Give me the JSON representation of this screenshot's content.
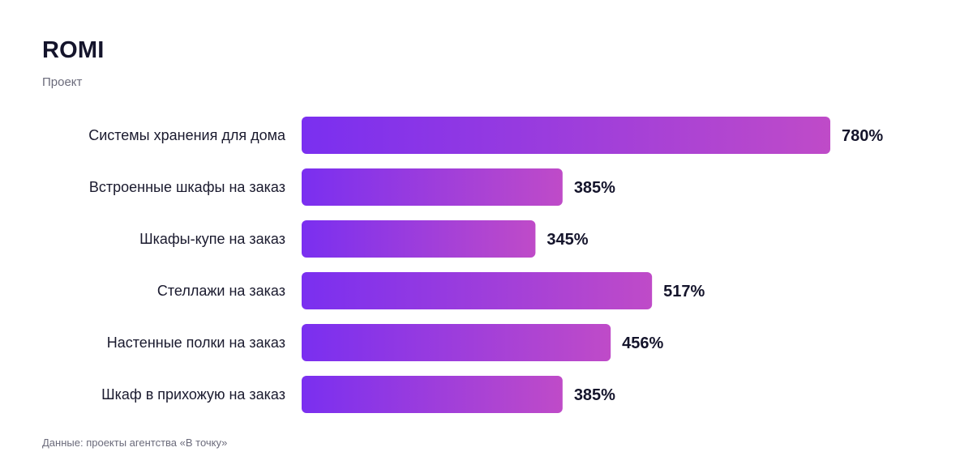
{
  "header": {
    "title": "ROMI",
    "subtitle": "Проект"
  },
  "footer": {
    "source": "Данные: проекты агентства «В точку»"
  },
  "colors": {
    "bar_start": "#7a2ff0",
    "bar_end": "#bf4bc8"
  },
  "chart_data": {
    "type": "bar",
    "orientation": "horizontal",
    "categories": [
      "Системы хранения для дома",
      "Встроенные шкафы на заказ",
      "Шкафы-купе на заказ",
      "Стеллажи на заказ",
      "Настенные полки на заказ",
      "Шкаф в прихожую на заказ"
    ],
    "values": [
      780,
      385,
      345,
      517,
      456,
      385
    ],
    "value_labels": [
      "780%",
      "385%",
      "345%",
      "517%",
      "456%",
      "385%"
    ],
    "unit": "%",
    "xlim": [
      0,
      780
    ],
    "grid": false
  }
}
